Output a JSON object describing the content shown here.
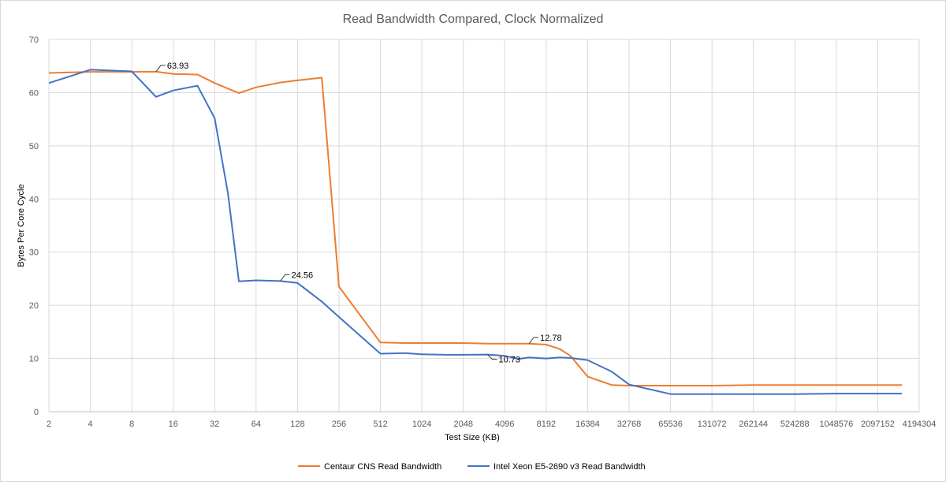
{
  "chart_data": {
    "type": "line",
    "title": "Read Bandwidth Compared, Clock Normalized",
    "xlabel": "Test Size (KB)",
    "ylabel": "Bytes Per Core Cycle",
    "x_scale": "log2",
    "x_ticks": [
      "2",
      "4",
      "8",
      "16",
      "32",
      "64",
      "128",
      "256",
      "512",
      "1024",
      "2048",
      "4096",
      "8192",
      "16384",
      "32768",
      "65536",
      "131072",
      "262144",
      "524288",
      "1048576",
      "2097152",
      "4194304"
    ],
    "xlim": [
      2,
      4194304
    ],
    "ylim": [
      0,
      70
    ],
    "y_ticks": [
      "0",
      "10",
      "20",
      "30",
      "40",
      "50",
      "60",
      "70"
    ],
    "grid": true,
    "legend": "bottom",
    "series": [
      {
        "name": "Centaur CNS Read Bandwidth",
        "color": "#ED7D31",
        "points": [
          [
            2,
            63.7
          ],
          [
            4,
            63.9
          ],
          [
            8,
            63.9
          ],
          [
            12,
            63.93
          ],
          [
            16,
            63.5
          ],
          [
            24,
            63.4
          ],
          [
            32,
            61.8
          ],
          [
            48,
            59.9
          ],
          [
            64,
            61.0
          ],
          [
            96,
            61.9
          ],
          [
            128,
            62.3
          ],
          [
            192,
            62.8
          ],
          [
            256,
            23.5
          ],
          [
            512,
            13.0
          ],
          [
            768,
            12.9
          ],
          [
            1024,
            12.9
          ],
          [
            1536,
            12.9
          ],
          [
            2048,
            12.9
          ],
          [
            3072,
            12.8
          ],
          [
            4096,
            12.8
          ],
          [
            6144,
            12.78
          ],
          [
            8192,
            12.6
          ],
          [
            10240,
            11.8
          ],
          [
            12288,
            10.5
          ],
          [
            16384,
            6.6
          ],
          [
            24576,
            5.0
          ],
          [
            32768,
            4.9
          ],
          [
            65536,
            4.9
          ],
          [
            131072,
            4.9
          ],
          [
            262144,
            5.0
          ],
          [
            524288,
            5.0
          ],
          [
            1048576,
            5.0
          ],
          [
            2097152,
            5.0
          ],
          [
            3145728,
            5.0
          ]
        ]
      },
      {
        "name": "Intel Xeon E5-2690 v3 Read Bandwidth",
        "color": "#4472C4",
        "points": [
          [
            2,
            61.8
          ],
          [
            4,
            64.3
          ],
          [
            8,
            64.0
          ],
          [
            12,
            59.2
          ],
          [
            16,
            60.4
          ],
          [
            24,
            61.3
          ],
          [
            32,
            55.2
          ],
          [
            40,
            41.0
          ],
          [
            48,
            24.5
          ],
          [
            64,
            24.7
          ],
          [
            96,
            24.56
          ],
          [
            128,
            24.2
          ],
          [
            192,
            20.7
          ],
          [
            256,
            17.8
          ],
          [
            512,
            10.9
          ],
          [
            768,
            11.0
          ],
          [
            1024,
            10.8
          ],
          [
            1536,
            10.7
          ],
          [
            2048,
            10.7
          ],
          [
            3072,
            10.73
          ],
          [
            4096,
            10.5
          ],
          [
            5120,
            9.9
          ],
          [
            6144,
            10.2
          ],
          [
            8192,
            10.0
          ],
          [
            10240,
            10.2
          ],
          [
            12288,
            10.1
          ],
          [
            16384,
            9.7
          ],
          [
            24576,
            7.5
          ],
          [
            32768,
            5.1
          ],
          [
            65536,
            3.3
          ],
          [
            131072,
            3.3
          ],
          [
            262144,
            3.3
          ],
          [
            524288,
            3.3
          ],
          [
            1048576,
            3.4
          ],
          [
            2097152,
            3.4
          ],
          [
            3145728,
            3.4
          ]
        ]
      }
    ],
    "annotations": [
      {
        "series": 0,
        "x": 12,
        "y": 63.93,
        "text": "63.93"
      },
      {
        "series": 1,
        "x": 96,
        "y": 24.56,
        "text": "24.56"
      },
      {
        "series": 0,
        "x": 6144,
        "y": 12.78,
        "text": "12.78"
      },
      {
        "series": 1,
        "x": 3072,
        "y": 10.73,
        "text": "10.73"
      }
    ]
  }
}
